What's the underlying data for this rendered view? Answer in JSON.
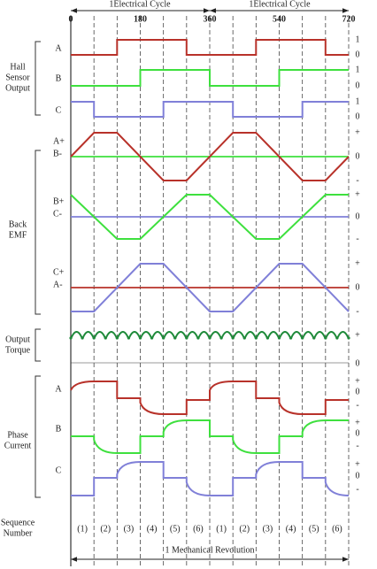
{
  "header": {
    "cycles": [
      "1Electrical Cycle",
      "1Electrical Cycle"
    ],
    "angles": [
      "0",
      "180",
      "360",
      "540",
      "720"
    ]
  },
  "hall": {
    "title": [
      "Hall",
      "Sensor",
      "Output"
    ],
    "signals": [
      "A",
      "B",
      "C"
    ],
    "levels": [
      [
        "1",
        "0"
      ],
      [
        "1",
        "0"
      ],
      [
        "1",
        "0"
      ]
    ]
  },
  "back_emf": {
    "title": [
      "Back",
      "EMF"
    ],
    "rows": [
      {
        "labels": [
          "A+",
          "B-"
        ],
        "levels": [
          "+",
          "0",
          "-"
        ]
      },
      {
        "labels": [
          "B+",
          "C-"
        ],
        "levels": [
          "+",
          "0",
          "-"
        ]
      },
      {
        "labels": [
          "C+",
          "A-"
        ],
        "levels": [
          "+",
          "0",
          "-"
        ]
      }
    ]
  },
  "torque": {
    "title": [
      "Output",
      "Torque"
    ],
    "levels": [
      "+",
      "0"
    ]
  },
  "phase_current": {
    "title": [
      "Phase",
      "Current"
    ],
    "signals": [
      "A",
      "B",
      "C"
    ],
    "levels": [
      [
        "+",
        "0",
        "-"
      ],
      [
        "+",
        "0",
        "-"
      ],
      [
        "+",
        "0",
        "-"
      ]
    ]
  },
  "sequence": {
    "title": [
      "Sequence",
      "Number"
    ],
    "steps": [
      "(1)",
      "(2)",
      "(3)",
      "(4)",
      "(5)",
      "(6)",
      "(1)",
      "(2)",
      "(3)",
      "(4)",
      "(5)",
      "(6)"
    ]
  },
  "footer": {
    "label": "1 Mechanical Revolution"
  }
}
